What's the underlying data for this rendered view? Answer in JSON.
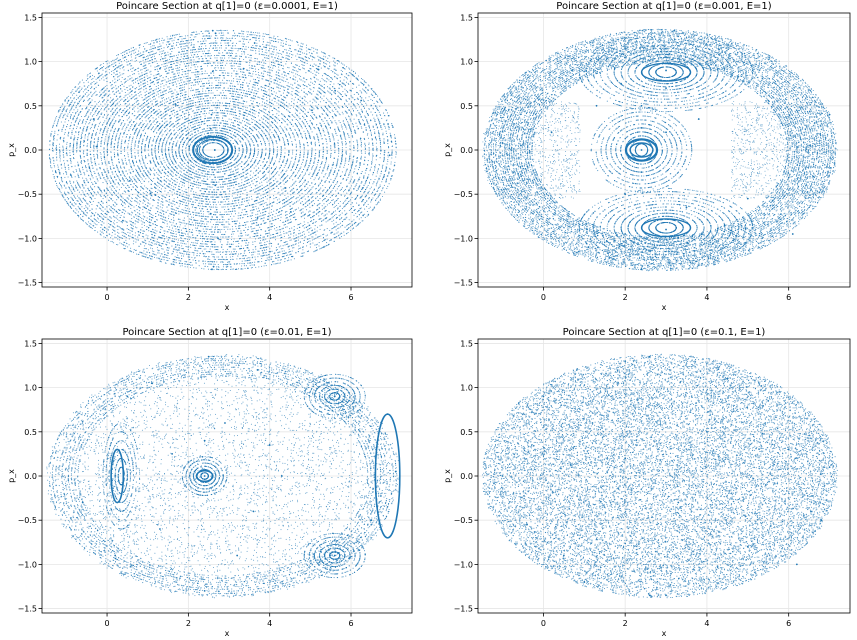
{
  "chart_data": [
    {
      "type": "scatter",
      "title": "Poincare Section at q[1]=0 (ε=0.0001, E=1)",
      "xlabel": "x",
      "ylabel": "p_x",
      "xlim": [
        -1.6,
        7.5
      ],
      "ylim": [
        -1.55,
        1.55
      ],
      "xticks": [
        0,
        2,
        4,
        6
      ],
      "yticks": [
        -1.5,
        -1.0,
        -0.5,
        0.0,
        0.5,
        1.0,
        1.5
      ],
      "grid": true,
      "color": "#1f77b4",
      "series": [
        {
          "points_x": [
            2.6,
            2.58,
            2.57,
            2.65,
            2.66,
            2.67,
            3.36,
            2.62,
            2.6,
            2.55,
            1.69,
            5.61,
            2.65,
            1.07,
            5.04,
            2.55,
            1.19,
            6.25,
            4.39,
            2.02,
            2.73,
            0.56,
            3.63,
            -0.26,
            4.52,
            2.05,
            0.39,
            3.7,
            5.2,
            -0.33,
            1.3,
            6.95
          ],
          "points_y": [
            1.35,
            -1.35,
            0.4,
            0.0,
            -0.4,
            1.32,
            0.92,
            -1.32,
            0.89,
            -0.72,
            0.51,
            0.67,
            0.0,
            -0.49,
            0.45,
            0.24,
            -0.51,
            0.56,
            -0.43,
            0.04,
            -1.0,
            -0.35,
            1.21,
            0.04,
            -0.7,
            0.12,
            -0.8,
            -0.77,
            0.91,
            0.35,
            0.92,
            -0.06
          ]
        }
      ]
    },
    {
      "type": "scatter",
      "title": "Poincare Section at q[1]=0 (ε=0.001, E=1)",
      "xlabel": "x",
      "ylabel": "p_x",
      "xlim": [
        -1.6,
        7.5
      ],
      "ylim": [
        -1.55,
        1.55
      ],
      "xticks": [
        0,
        2,
        4,
        6
      ],
      "yticks": [
        -1.5,
        -1.0,
        -0.5,
        0.0,
        0.5,
        1.0,
        1.5
      ],
      "grid": true,
      "color": "#1f77b4",
      "series": [
        {
          "points_x": [
            2.4,
            3.0,
            3.0,
            2.4,
            2.4,
            3.0,
            2.4,
            3.0,
            1.3,
            5.0,
            0.2,
            6.6,
            3.2,
            1.1,
            5.1,
            2.4,
            3.5,
            1.9,
            -0.55,
            7.0,
            2.0,
            3.8,
            0.7,
            6.1,
            3.0,
            2.0
          ],
          "points_y": [
            0.0,
            0.9,
            -0.9,
            0.25,
            -0.25,
            0.7,
            0.5,
            1.05,
            0.5,
            -0.55,
            0.2,
            -0.3,
            1.35,
            -1.1,
            0.95,
            -1.35,
            -0.65,
            0.75,
            0.05,
            0.4,
            -0.95,
            0.35,
            0.9,
            -0.95,
            0.2,
            -0.5
          ]
        }
      ]
    },
    {
      "type": "scatter",
      "title": "Poincare Section at q[1]=0 (ε=0.01, E=1)",
      "xlabel": "x",
      "ylabel": "p_x",
      "xlim": [
        -1.6,
        7.5
      ],
      "ylim": [
        -1.55,
        1.55
      ],
      "xticks": [
        0,
        2,
        4,
        6
      ],
      "yticks": [
        -1.5,
        -1.0,
        -0.5,
        0.0,
        0.5,
        1.0,
        1.5
      ],
      "grid": true,
      "color": "#1f77b4",
      "series": [
        {
          "points_x": [
            0.2,
            2.4,
            5.6,
            5.6,
            0.5,
            2.9,
            7.1,
            1.3,
            4.0,
            3.6,
            3.7,
            1.1,
            2.4,
            2.5,
            6.5,
            -0.6,
            4.3,
            6.9,
            0.2,
            2.4,
            1.6,
            3.2
          ],
          "points_y": [
            0.0,
            0.0,
            0.9,
            -0.9,
            0.9,
            0.6,
            0.05,
            -0.6,
            0.35,
            -0.4,
            1.2,
            1.05,
            -1.3,
            1.35,
            -0.5,
            -0.3,
            0.0,
            0.7,
            -0.9,
            0.4,
            0.25,
            -0.9
          ]
        }
      ]
    },
    {
      "type": "scatter",
      "title": "Poincare Section at q[1]=0 (ε=0.1, E=1)",
      "xlabel": "x",
      "ylabel": "p_x",
      "xlim": [
        -1.6,
        7.5
      ],
      "ylim": [
        -1.55,
        1.55
      ],
      "xticks": [
        0,
        2,
        4,
        6
      ],
      "yticks": [
        -1.5,
        -1.0,
        -0.5,
        0.0,
        0.5,
        1.0,
        1.5
      ],
      "grid": true,
      "color": "#1f77b4",
      "series": [
        {
          "points_x": [
            -1.0,
            0.0,
            1.0,
            2.0,
            3.0,
            4.0,
            5.0,
            6.0,
            7.0,
            2.6,
            2.6,
            6.8,
            0.5,
            4.5,
            1.2,
            5.5,
            3.3,
            -0.4,
            6.2,
            2.0
          ],
          "points_y": [
            0.0,
            0.9,
            -1.2,
            1.3,
            -1.35,
            0.5,
            -0.8,
            0.3,
            0.1,
            1.35,
            -1.35,
            -0.5,
            -0.9,
            1.1,
            0.6,
            0.85,
            -0.3,
            -0.55,
            -1.0,
            0.2
          ]
        }
      ]
    }
  ]
}
